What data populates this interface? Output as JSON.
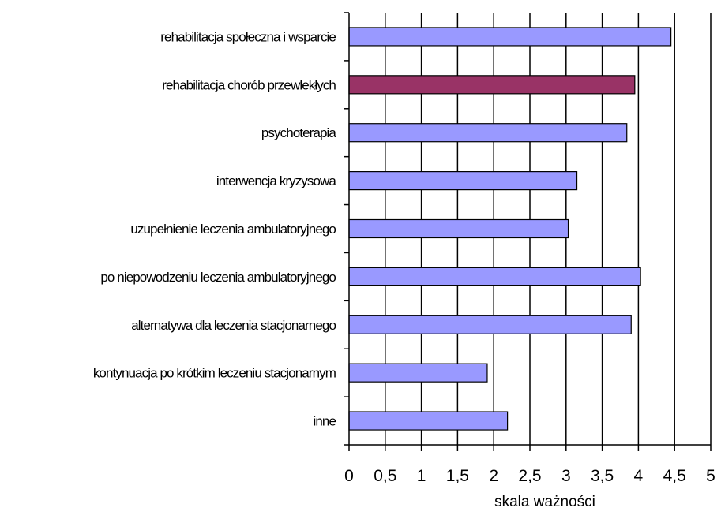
{
  "chart_data": {
    "type": "bar",
    "orientation": "horizontal",
    "categories": [
      "rehabilitacja społeczna i wsparcie",
      "rehabilitacja chorób przewlekłych",
      "psychoterapia",
      "interwencja kryzysowa",
      "uzupełnienie leczenia ambulatoryjnego",
      "po niepowodzeniu leczenia ambulatoryjnego",
      "alternatywa dla leczenia stacjonarnego",
      "kontynuacja po krótkim leczeniu stacjonarnym",
      "inne"
    ],
    "values": [
      4.45,
      3.95,
      3.84,
      3.15,
      3.03,
      4.03,
      3.9,
      1.91,
      2.19
    ],
    "highlight_index": 1,
    "xlabel": "skala ważności",
    "ylabel": "",
    "title": "",
    "xlim": [
      0,
      5
    ],
    "xticks": [
      "0",
      "0,5",
      "1",
      "1,5",
      "2",
      "2,5",
      "3",
      "3,5",
      "4",
      "4,5",
      "5"
    ],
    "grid": "vertical",
    "legend": "none",
    "colors": {
      "bar": "#9999ff",
      "highlight": "#993366",
      "bar_edge": "#000000",
      "grid": "#000000"
    }
  }
}
